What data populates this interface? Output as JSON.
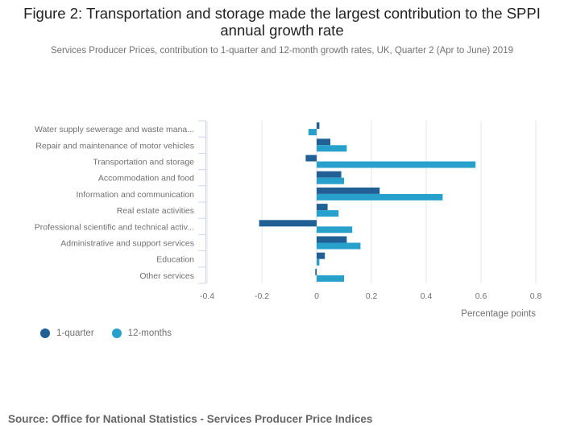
{
  "title": "Figure 2: Transportation and storage made the largest contribution to the SPPI annual growth rate",
  "subtitle": "Services Producer Prices, contribution to 1-quarter and 12-month growth rates, UK, Quarter 2 (Apr to June) 2019",
  "source": "Source: Office for National Statistics - Services Producer Price Indices",
  "colors": {
    "series_1": "#206095",
    "series_2": "#27a0cc"
  },
  "chart_data": {
    "type": "bar",
    "orientation": "horizontal",
    "title": "Figure 2: Transportation and storage made the largest contribution to the SPPI annual growth rate",
    "subtitle": "Services Producer Prices, contribution to 1-quarter and 12-month growth rates, UK, Quarter 2 (Apr to June) 2019",
    "categories": [
      "Water supply sewerage and waste mana...",
      "Repair and maintenance of motor vehicles",
      "Transportation and storage",
      "Accommodation and food",
      "Information and communication",
      "Real estate activities",
      "Professional scientific and technical activ...",
      "Administrative and support services",
      "Education",
      "Other services"
    ],
    "series": [
      {
        "name": "1-quarter",
        "color": "#206095",
        "values": [
          0.01,
          0.05,
          -0.04,
          0.09,
          0.23,
          0.04,
          -0.21,
          0.11,
          0.03,
          -0.005
        ]
      },
      {
        "name": "12-months",
        "color": "#27a0cc",
        "values": [
          -0.03,
          0.11,
          0.58,
          0.1,
          0.46,
          0.08,
          0.13,
          0.16,
          0.01,
          0.1
        ]
      }
    ],
    "xlabel": "Percentage points",
    "ylabel": "",
    "xlim": [
      -0.4,
      0.8
    ],
    "xticks": [
      "-0.4",
      "-0.2",
      "0",
      "0.2",
      "0.4",
      "0.6",
      "0.8"
    ],
    "xtick_values": [
      -0.4,
      -0.2,
      0,
      0.2,
      0.4,
      0.6,
      0.8
    ],
    "grid": true,
    "legend": "bottom-left"
  }
}
